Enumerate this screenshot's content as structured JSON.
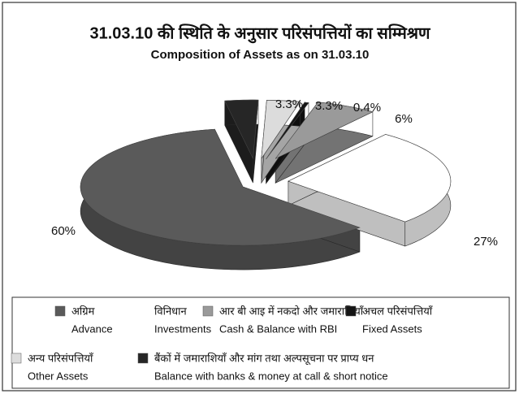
{
  "chart_data": {
    "type": "pie",
    "title": "31.03.10 की स्थिति के अनुसार परिसंपत्तियों का सम्मिश्रण",
    "subtitle": "Composition of Assets as on 31.03.10",
    "series": [
      {
        "name": "Advance",
        "name_hi": "अग्रिम",
        "color": "#5a5a5a",
        "values": [
          60
        ],
        "value_labels": [
          "60%"
        ]
      },
      {
        "name": "Investments",
        "name_hi": "विनिधान",
        "color": "#ffffff",
        "values": [
          27
        ],
        "value_labels": [
          "27%"
        ]
      },
      {
        "name": "Cash & Balance with RBI",
        "name_hi": "आर बी आइ में नकदो और जमाराशियाँ",
        "color": "#9a9a9a",
        "values": [
          6
        ],
        "value_labels": [
          "6%"
        ]
      },
      {
        "name": "Fixed Assets",
        "name_hi": "अचल परिसंपत्तियाँ",
        "color": "#151515",
        "values": [
          0.4
        ],
        "value_labels": [
          "0.4%"
        ]
      },
      {
        "name": "Other Assets",
        "name_hi": "अन्य परिसंपत्तियाँ",
        "color": "#dcdcdc",
        "values": [
          3.3
        ],
        "value_labels": [
          "3.3%"
        ]
      },
      {
        "name": "Balance with banks & money at call & short notice",
        "name_hi": "बैंकों में जमाराशियाँ और मांग तथा अल्पसूचना पर प्राप्य धन",
        "color": "#262626",
        "values": [
          3.3
        ],
        "value_labels": [
          "3.3%"
        ]
      }
    ]
  }
}
